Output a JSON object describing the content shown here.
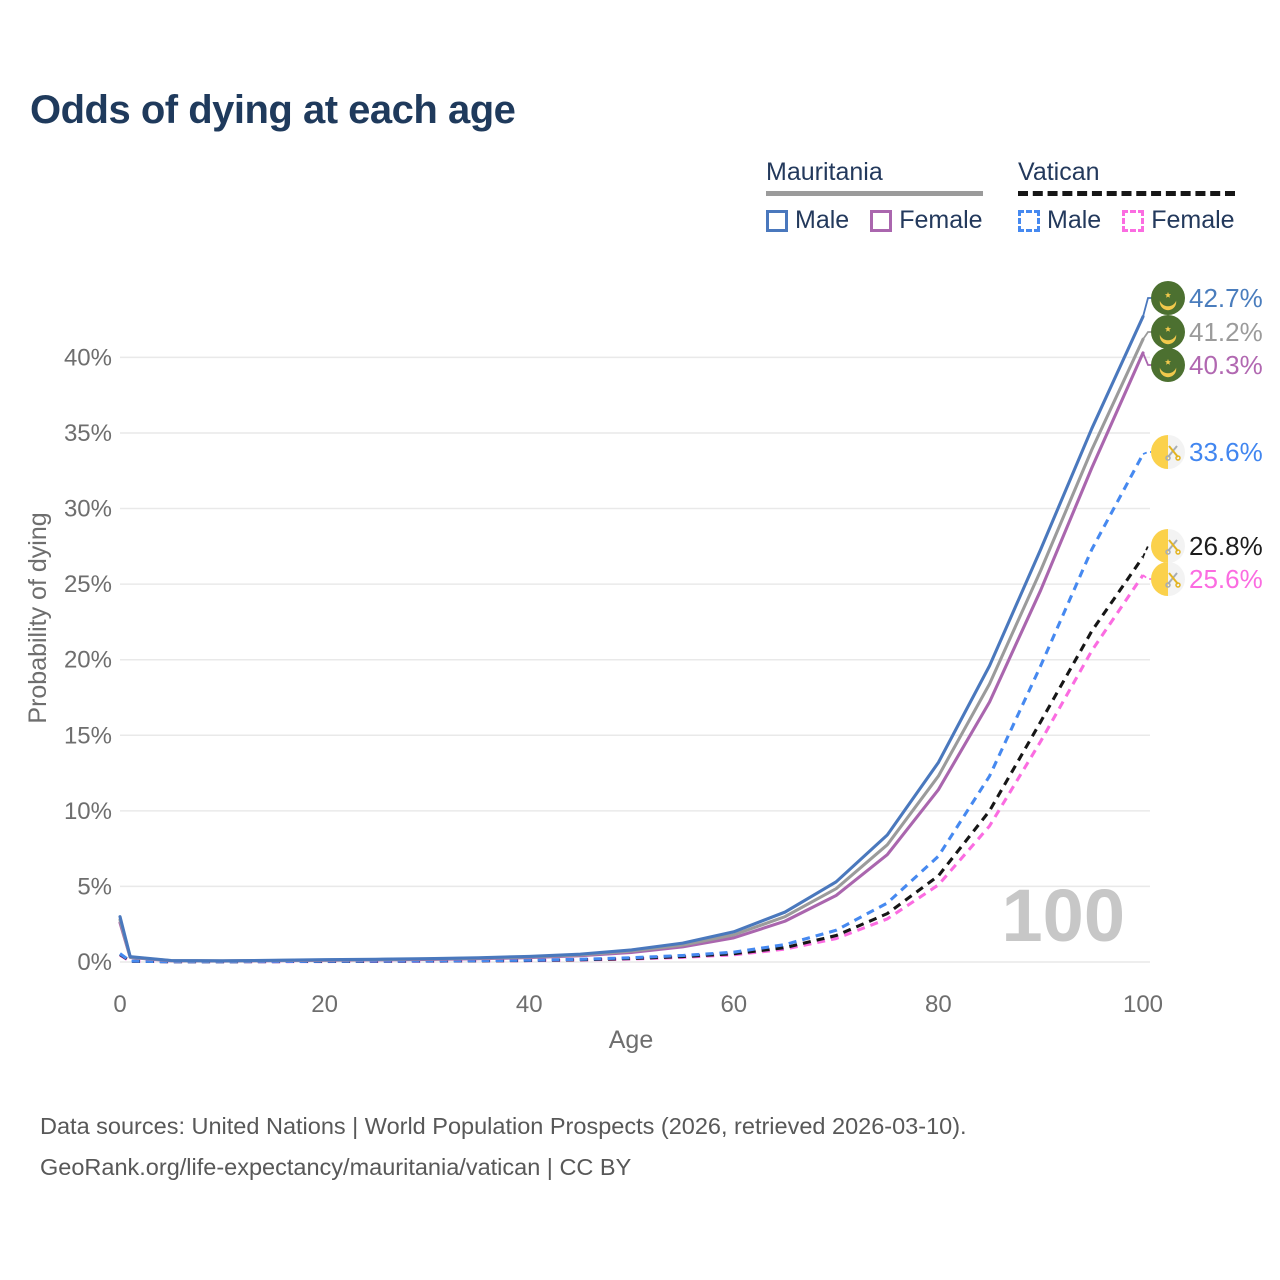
{
  "title": "Odds of dying at each age",
  "watermark": "100",
  "legend": {
    "groups": [
      {
        "name": "Mauritania",
        "line_style": "solid",
        "line_color": "#9b9b9b",
        "items": [
          {
            "label": "Male",
            "color": "#4a78bd"
          },
          {
            "label": "Female",
            "color": "#aa66ae"
          }
        ]
      },
      {
        "name": "Vatican",
        "line_style": "dashed",
        "line_color": "#161616",
        "items": [
          {
            "label": "Male",
            "color": "#4689f0"
          },
          {
            "label": "Female",
            "color": "#fb6ce1"
          }
        ]
      }
    ]
  },
  "chart_data": {
    "type": "line",
    "title": "Odds of dying at each age",
    "xlabel": "Age",
    "ylabel": "Probability of dying",
    "x_ticks": [
      0,
      20,
      40,
      60,
      80,
      100
    ],
    "y_ticks": [
      "0%",
      "5%",
      "10%",
      "15%",
      "20%",
      "25%",
      "30%",
      "35%",
      "40%"
    ],
    "xlim": [
      0,
      100
    ],
    "ylim_percent": [
      0,
      43.5
    ],
    "grid": "horizontal",
    "legend_position": "top-right",
    "x": [
      0,
      1,
      5,
      10,
      15,
      20,
      25,
      30,
      35,
      40,
      45,
      50,
      55,
      60,
      65,
      70,
      75,
      80,
      85,
      90,
      95,
      100
    ],
    "series": [
      {
        "name": "Mauritania Male",
        "country": "Mauritania",
        "sex": "male",
        "style": "solid",
        "color": "#4a78bd",
        "values": [
          3.0,
          0.35,
          0.1,
          0.08,
          0.11,
          0.15,
          0.18,
          0.22,
          0.28,
          0.37,
          0.52,
          0.8,
          1.25,
          2.0,
          3.3,
          5.3,
          8.4,
          13.2,
          19.6,
          27.3,
          35.3,
          42.7
        ]
      },
      {
        "name": "Mauritania Both sexes",
        "country": "Mauritania",
        "sex": "both",
        "style": "solid",
        "color": "#9b9b9b",
        "values": [
          2.8,
          0.32,
          0.09,
          0.07,
          0.1,
          0.13,
          0.16,
          0.2,
          0.25,
          0.33,
          0.47,
          0.72,
          1.12,
          1.8,
          3.0,
          4.85,
          7.75,
          12.3,
          18.4,
          25.9,
          33.9,
          41.2
        ]
      },
      {
        "name": "Mauritania Female",
        "country": "Mauritania",
        "sex": "female",
        "style": "solid",
        "color": "#aa66ae",
        "values": [
          2.6,
          0.3,
          0.08,
          0.06,
          0.09,
          0.11,
          0.14,
          0.17,
          0.22,
          0.29,
          0.42,
          0.63,
          1.0,
          1.6,
          2.7,
          4.4,
          7.1,
          11.4,
          17.2,
          24.6,
          32.7,
          40.3
        ]
      },
      {
        "name": "Vatican Male",
        "country": "Vatican",
        "sex": "male",
        "style": "dashed",
        "color": "#4689f0",
        "values": [
          0.55,
          0.06,
          0.02,
          0.02,
          0.03,
          0.05,
          0.06,
          0.07,
          0.09,
          0.12,
          0.18,
          0.28,
          0.43,
          0.65,
          1.15,
          2.1,
          3.9,
          7.0,
          12.3,
          19.6,
          27.3,
          33.6
        ]
      },
      {
        "name": "Vatican Both sexes",
        "country": "Vatican",
        "sex": "both",
        "style": "dashed",
        "color": "#161616",
        "values": [
          0.5,
          0.05,
          0.02,
          0.02,
          0.03,
          0.04,
          0.05,
          0.06,
          0.08,
          0.1,
          0.15,
          0.23,
          0.36,
          0.55,
          0.95,
          1.75,
          3.2,
          5.7,
          10.0,
          15.9,
          21.9,
          26.8
        ]
      },
      {
        "name": "Vatican Female",
        "country": "Vatican",
        "sex": "female",
        "style": "dashed",
        "color": "#fb6ce1",
        "values": [
          0.45,
          0.05,
          0.02,
          0.02,
          0.02,
          0.03,
          0.04,
          0.05,
          0.07,
          0.09,
          0.13,
          0.2,
          0.31,
          0.48,
          0.85,
          1.55,
          2.85,
          5.1,
          9.0,
          14.6,
          20.6,
          25.6
        ]
      }
    ],
    "end_labels": [
      {
        "text": "42.7%",
        "value_percent": 42.7,
        "color": "#4a7dbd",
        "flag": "mauritania"
      },
      {
        "text": "41.2%",
        "value_percent": 41.2,
        "color": "#9b9b9b",
        "flag": "mauritania"
      },
      {
        "text": "40.3%",
        "value_percent": 40.3,
        "color": "#b168b1",
        "flag": "mauritania"
      },
      {
        "text": "33.6%",
        "value_percent": 33.6,
        "color": "#4186f0",
        "flag": "vatican"
      },
      {
        "text": "26.8%",
        "value_percent": 26.8,
        "color": "#1c1c1c",
        "flag": "vatican"
      },
      {
        "text": "25.6%",
        "value_percent": 25.6,
        "color": "#fb6ce1",
        "flag": "vatican"
      }
    ]
  },
  "footer": {
    "line1": "Data sources: United Nations | World Population Prospects (2026, retrieved 2026-03-10).",
    "line2": "GeoRank.org/life-expectancy/mauritania/vatican | CC BY"
  }
}
